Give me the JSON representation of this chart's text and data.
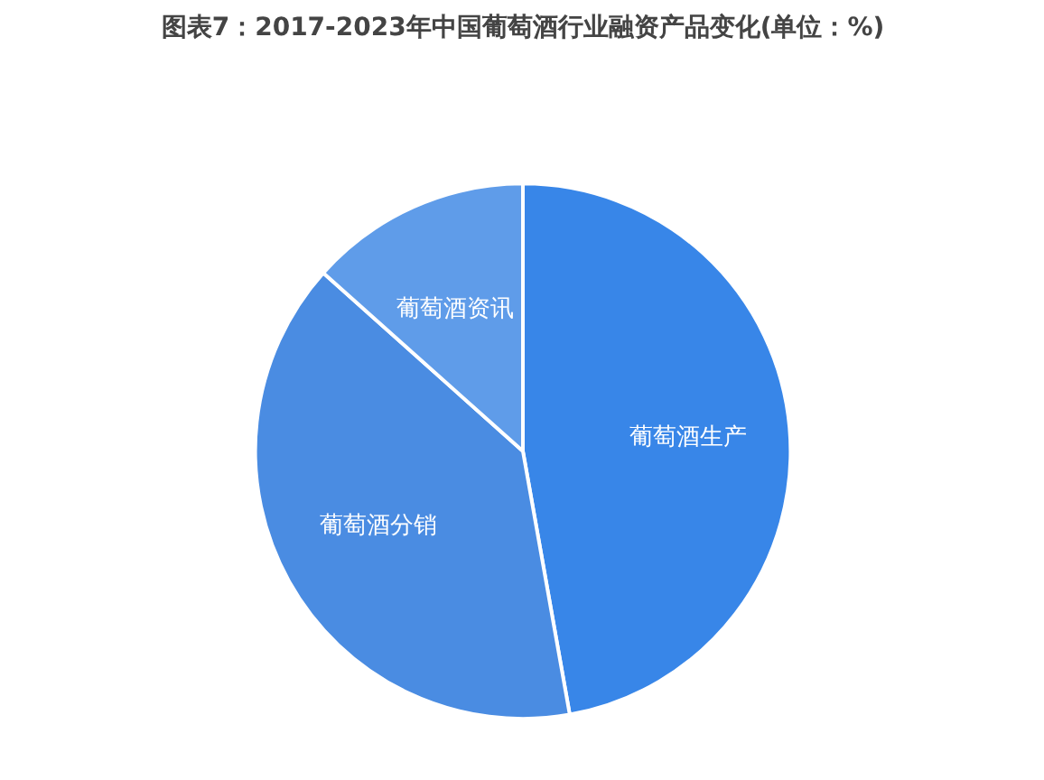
{
  "chart_data": {
    "type": "pie",
    "title": "图表7：2017-2023年中国葡萄酒行业融资产品变化(单位：%)",
    "categories": [
      "葡萄酒生产",
      "葡萄酒分销",
      "葡萄酒资讯"
    ],
    "values": [
      47.2,
      39.4,
      13.4
    ],
    "colors": [
      "#3886e8",
      "#4a8ce2",
      "#5f9ce9"
    ]
  }
}
